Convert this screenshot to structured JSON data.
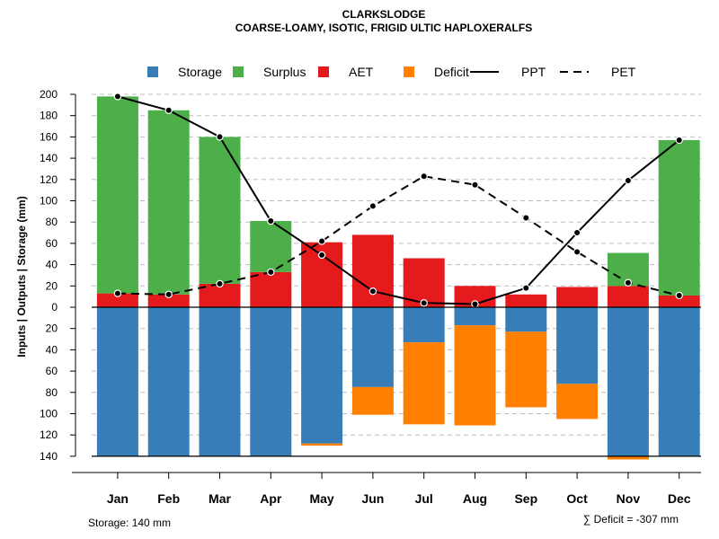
{
  "chart_data": {
    "type": "bar",
    "title": "CLARKSLODGE",
    "subtitle": "COARSE-LOAMY, ISOTIC, FRIGID ULTIC HAPLOXERALFS",
    "ylabel": "Inputs | Outputs | Storage    (mm)",
    "ylim": [
      -140,
      200
    ],
    "yticks_pos": [
      0,
      20,
      40,
      60,
      80,
      100,
      120,
      140,
      160,
      180,
      200
    ],
    "yticks_neg": [
      20,
      40,
      60,
      80,
      100,
      120,
      140
    ],
    "tick_labels": [
      "0",
      "20",
      "40",
      "60",
      "80",
      "100",
      "120",
      "140",
      "160",
      "180",
      "200"
    ],
    "categories": [
      "Jan",
      "Feb",
      "Mar",
      "Apr",
      "May",
      "Jun",
      "Jul",
      "Aug",
      "Sep",
      "Oct",
      "Nov",
      "Dec"
    ],
    "legend": [
      {
        "label": "Storage",
        "kind": "box",
        "color": "#377EB8"
      },
      {
        "label": "Surplus",
        "kind": "box",
        "color": "#4DAF4A"
      },
      {
        "label": "AET",
        "kind": "box",
        "color": "#E41A1C"
      },
      {
        "label": "Deficit",
        "kind": "box",
        "color": "#FF7F00"
      },
      {
        "label": "PPT",
        "kind": "solid",
        "color": "#000000"
      },
      {
        "label": "PET",
        "kind": "dashed",
        "color": "#000000"
      }
    ],
    "series": {
      "aet": [
        13,
        12,
        22,
        33,
        61,
        68,
        46,
        20,
        12,
        19,
        20,
        11
      ],
      "surplus": [
        185,
        173,
        138,
        48,
        0,
        0,
        0,
        0,
        0,
        0,
        31,
        146
      ],
      "storage": [
        140,
        140,
        140,
        140,
        128,
        75,
        33,
        17,
        23,
        72,
        140,
        140
      ],
      "deficit": [
        0,
        0,
        0,
        0,
        2,
        26,
        77,
        94,
        71,
        33,
        3,
        0
      ],
      "ppt": [
        198,
        185,
        160,
        81,
        49,
        15,
        4,
        3,
        18,
        70,
        119,
        157
      ],
      "pet": [
        13,
        12,
        22,
        33,
        62,
        95,
        123,
        115,
        84,
        52,
        23,
        11
      ]
    },
    "colors": {
      "storage": "#377EB8",
      "surplus": "#4DAF4A",
      "aet": "#E41A1C",
      "deficit": "#FF7F00"
    },
    "footer_left": "Storage: 140 mm",
    "footer_right": "∑ Deficit = -307 mm"
  }
}
